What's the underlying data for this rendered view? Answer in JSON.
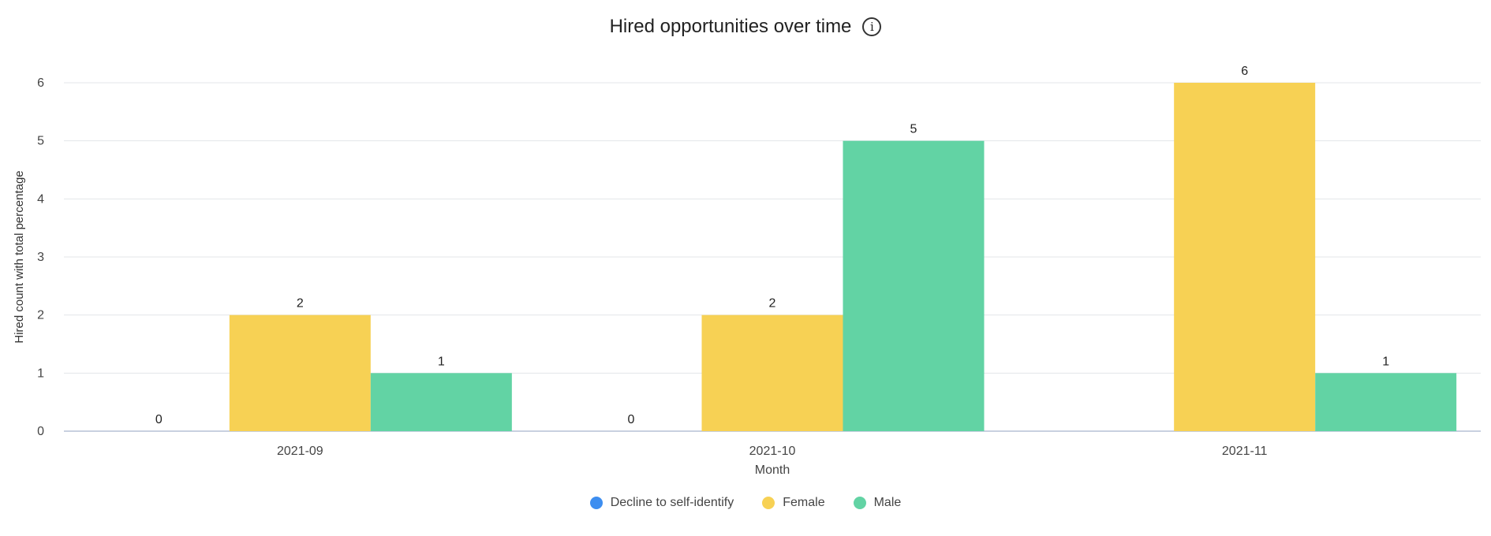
{
  "chart_data": {
    "type": "bar",
    "title": "Hired opportunities over time",
    "xlabel": "Month",
    "ylabel": "Hired count with total percentage",
    "categories": [
      "2021-09",
      "2021-10",
      "2021-11"
    ],
    "series": [
      {
        "name": "Decline to self-identify",
        "color": "#3d8ef0",
        "values": [
          0,
          0,
          null
        ]
      },
      {
        "name": "Female",
        "color": "#f7d154",
        "values": [
          2,
          2,
          6
        ]
      },
      {
        "name": "Male",
        "color": "#62d3a4",
        "values": [
          1,
          5,
          1
        ]
      }
    ],
    "ylim": [
      0,
      6
    ],
    "yticks": [
      0,
      1,
      2,
      3,
      4,
      5,
      6
    ],
    "grid": true,
    "legend": "bottom-center"
  },
  "icons": {
    "info": "info-icon"
  },
  "info_glyph": "i"
}
